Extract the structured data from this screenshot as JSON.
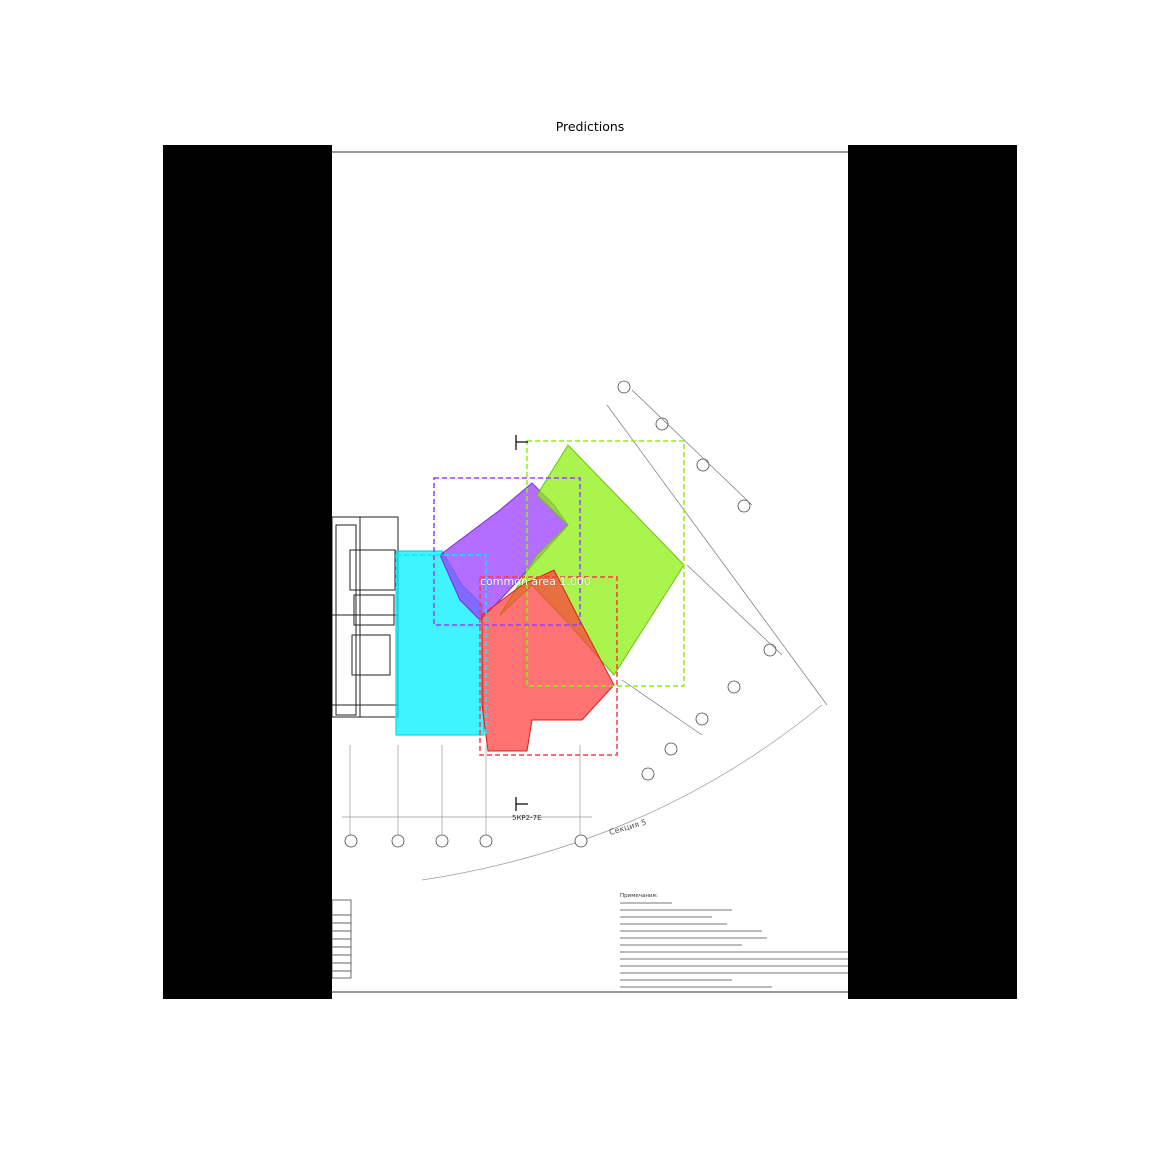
{
  "title": "Predictions",
  "detections": [
    {
      "label": "common area 1.000",
      "color": "#ff3b3b"
    },
    {
      "label": "",
      "color": "#00f0ff"
    },
    {
      "label": "",
      "color": "#9a3cff"
    },
    {
      "label": "",
      "color": "#8ef011"
    }
  ],
  "drawing": {
    "cut_mark": "5КР2-7Е",
    "section_label": "Секция 5",
    "notes_heading": "Примечания:"
  }
}
